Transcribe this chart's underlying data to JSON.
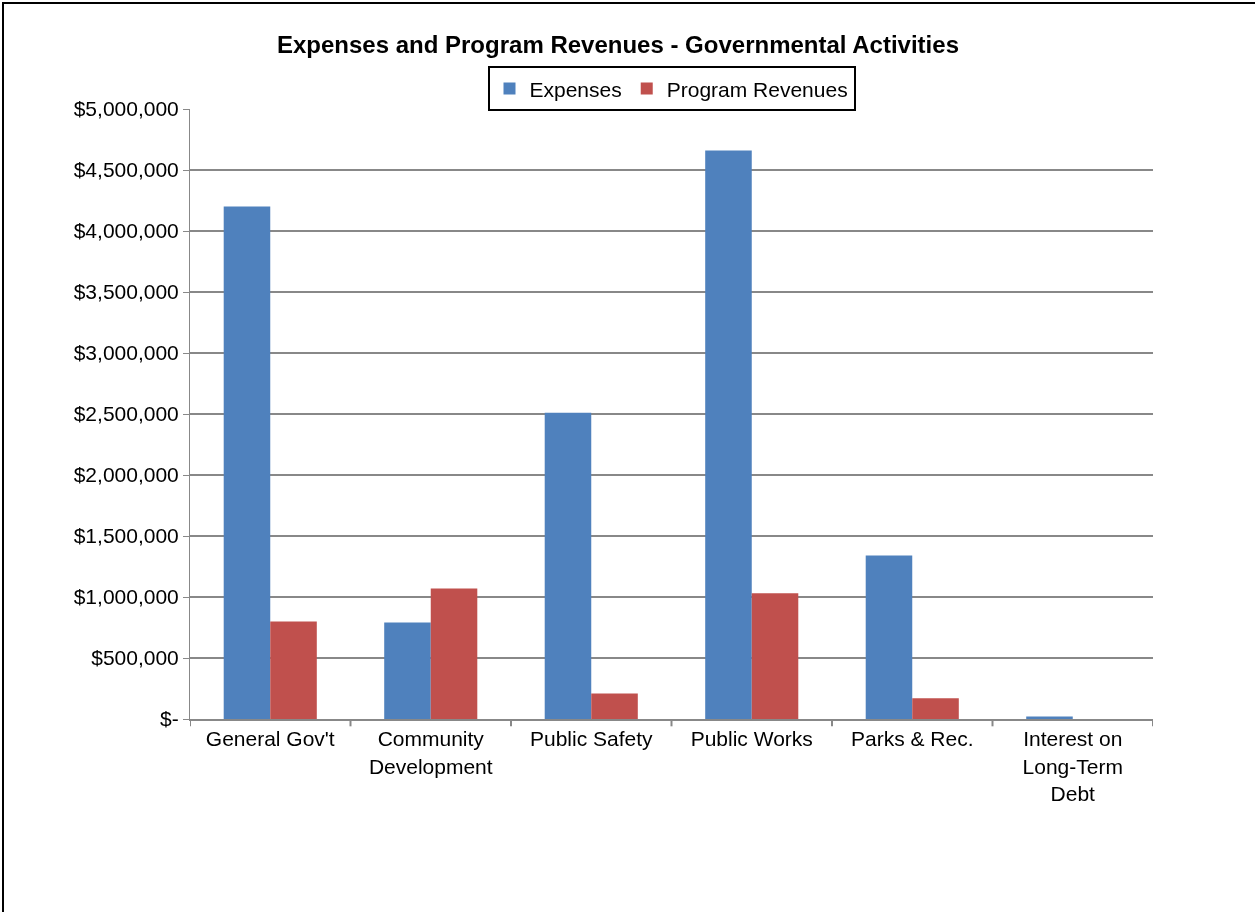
{
  "chart_data": {
    "type": "bar",
    "title": "Expenses and Program Revenues - Governmental Activities",
    "categories": [
      "General Gov't",
      "Community\nDevelopment",
      "Public Safety",
      "Public Works",
      "Parks & Rec.",
      "Interest on\nLong-Term\nDebt"
    ],
    "series": [
      {
        "name": "Expenses",
        "color": "#4f81bd",
        "values": [
          4200000,
          790000,
          2510000,
          4660000,
          1340000,
          20000
        ]
      },
      {
        "name": "Program Revenues",
        "color": "#c0504d",
        "values": [
          800000,
          1070000,
          210000,
          1030000,
          170000,
          0
        ]
      }
    ],
    "ylim": [
      0,
      5000000
    ],
    "yticks": [
      {
        "value": 0,
        "label": "$-"
      },
      {
        "value": 500000,
        "label": "$500,000"
      },
      {
        "value": 1000000,
        "label": "$1,000,000"
      },
      {
        "value": 1500000,
        "label": "$1,500,000"
      },
      {
        "value": 2000000,
        "label": "$2,000,000"
      },
      {
        "value": 2500000,
        "label": "$2,500,000"
      },
      {
        "value": 3000000,
        "label": "$3,000,000"
      },
      {
        "value": 3500000,
        "label": "$3,500,000"
      },
      {
        "value": 4000000,
        "label": "$4,000,000"
      },
      {
        "value": 4500000,
        "label": "$4,500,000"
      },
      {
        "value": 5000000,
        "label": "$5,000,000"
      }
    ],
    "grid": "y",
    "legend": "top"
  }
}
